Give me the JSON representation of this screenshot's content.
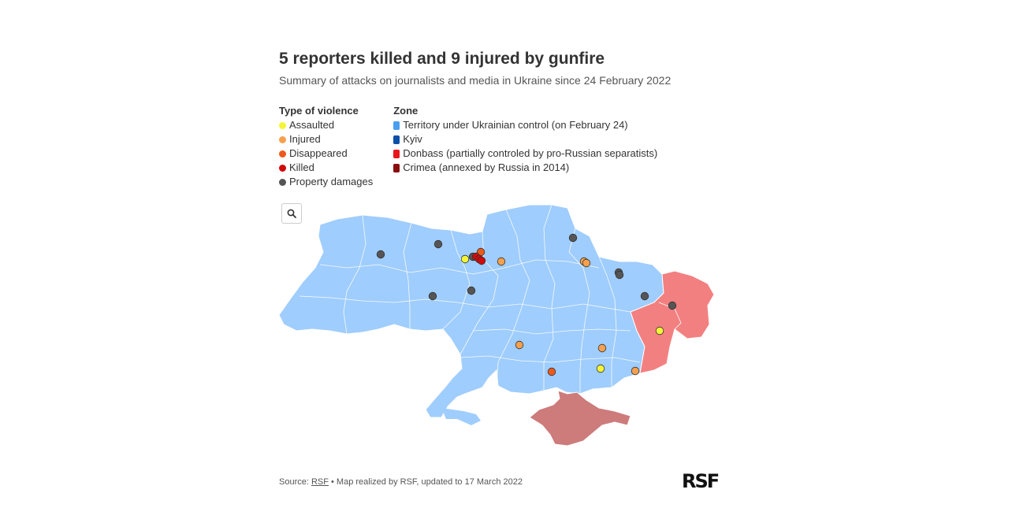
{
  "header": {
    "title": "5 reporters killed and 9 injured by gunfire",
    "subtitle": "Summary of attacks on journalists and media in Ukraine since 24 February 2022"
  },
  "legend": {
    "violence_title": "Type of violence",
    "violence": [
      {
        "label": "Assaulted",
        "color": "#f5f538"
      },
      {
        "label": "Injured",
        "color": "#f6a04d"
      },
      {
        "label": "Disappeared",
        "color": "#ee5a1a"
      },
      {
        "label": "Killed",
        "color": "#d20a0a"
      },
      {
        "label": "Property damages",
        "color": "#555555"
      }
    ],
    "zone_title": "Zone",
    "zones": [
      {
        "label": "Territory under Ukrainian control (on February 24)",
        "color": "#4a9ef0"
      },
      {
        "label": "Kyiv",
        "color": "#0b4fa8"
      },
      {
        "label": "Donbass (partially controled by pro-Russian separatists)",
        "color": "#e8161a"
      },
      {
        "label": "Crimea (annexed by Russia in 2014)",
        "color": "#8b0e0e"
      }
    ]
  },
  "map": {
    "zone_colors": {
      "ukraine": "#9fcdfd",
      "donbass": "#f38080",
      "crimea": "#cd7b7b"
    }
  },
  "footer": {
    "source_prefix": "Source: ",
    "source_link": "RSF",
    "rest": " • Map realized by RSF, updated to 17 March 2022"
  },
  "logo": "RSF"
}
